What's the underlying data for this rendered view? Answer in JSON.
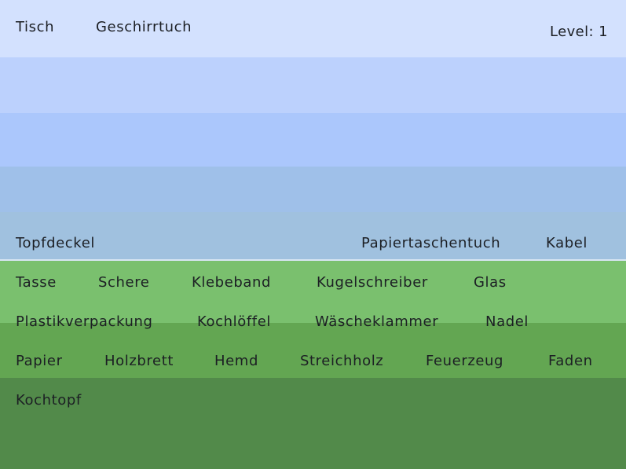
{
  "colors": {
    "sky_1": "#d3e1fe",
    "sky_2": "#bcd1fd",
    "sky_3": "#abc7fc",
    "sky_4": "#9fc0e9",
    "sky_5": "#a0c1df",
    "divider": "#d8e6f3",
    "grass_1": "#7ac06e",
    "grass_2": "#63a652",
    "grass_3": "#528a4a"
  },
  "hud": {
    "level_text": "Level: 1"
  },
  "top_row": [
    "Tisch",
    "Geschirrtuch"
  ],
  "falling_row": [
    "Topfdeckel",
    "Papiertaschentuch",
    "Kabel"
  ],
  "ground_rows": [
    [
      "Tasse",
      "Schere",
      "Klebeband",
      "Kugelschreiber",
      "Glas"
    ],
    [
      "Plastikverpackung",
      "Kochlöffel",
      "Wäscheklammer",
      "Nadel"
    ],
    [
      "Papier",
      "Holzbrett",
      "Hemd",
      "Streichholz",
      "Feuerzeug",
      "Faden"
    ],
    [
      "Kochtopf"
    ]
  ]
}
